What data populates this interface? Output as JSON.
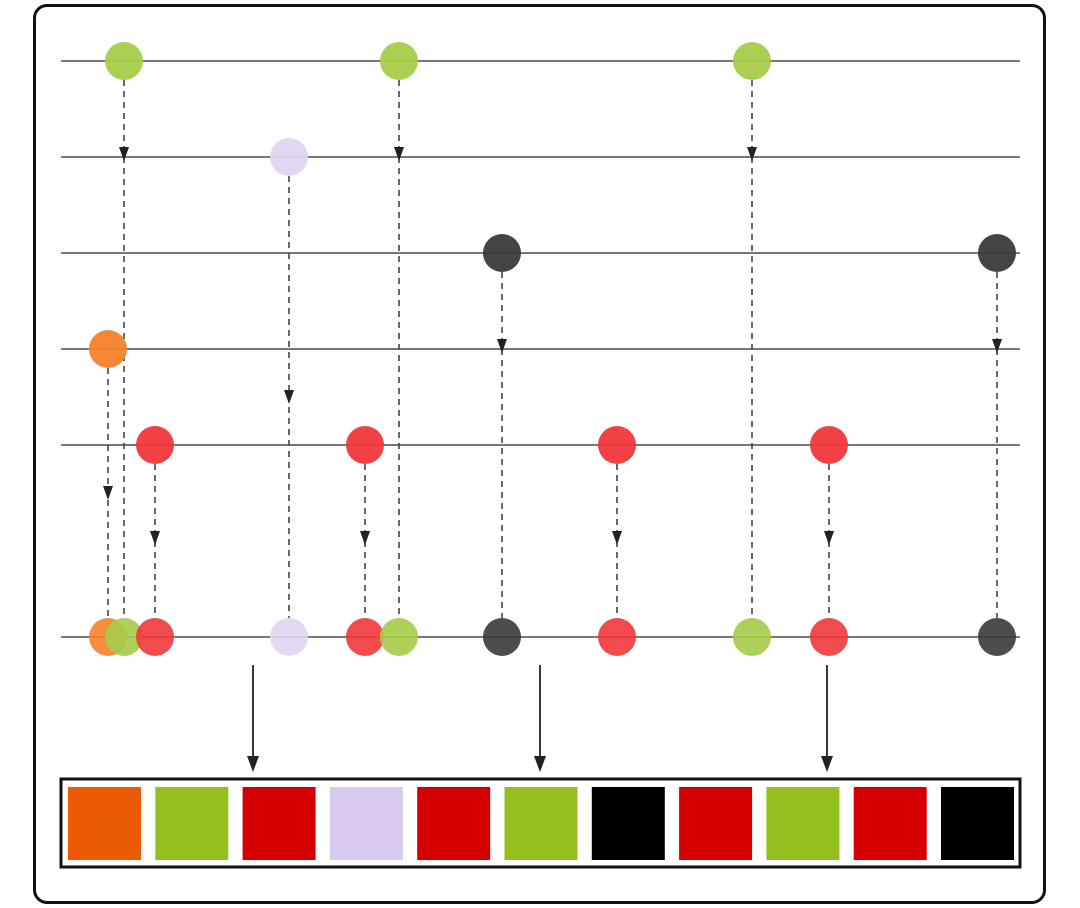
{
  "colors": {
    "orange": "#F5822A",
    "green": "#A6CC4A",
    "lavender": "#E0D5F2",
    "dark": "#3A3A3A",
    "red": "#F0373A",
    "output_orange": "#EB5A05",
    "output_green": "#93BF1F",
    "output_red": "#D60000",
    "output_lavender": "#D8C9EE",
    "output_dark": "#000000",
    "timeline": "#777777",
    "arrow": "#222222"
  },
  "streams": [
    {
      "role": "input",
      "events": [
        {
          "step": 1,
          "color": "green"
        },
        {
          "step": 5,
          "color": "green"
        },
        {
          "step": 9,
          "color": "green"
        }
      ]
    },
    {
      "role": "input",
      "events": [
        {
          "step": 3,
          "color": "lavender"
        }
      ]
    },
    {
      "role": "input",
      "events": [
        {
          "step": 6,
          "color": "dark"
        },
        {
          "step": 11,
          "color": "dark"
        }
      ]
    },
    {
      "role": "input",
      "events": [
        {
          "step": 0,
          "color": "orange"
        }
      ]
    },
    {
      "role": "input",
      "events": [
        {
          "step": 2,
          "color": "red"
        },
        {
          "step": 4,
          "color": "red"
        },
        {
          "step": 7,
          "color": "red"
        },
        {
          "step": 10,
          "color": "red"
        }
      ]
    },
    {
      "role": "merged",
      "events": [
        {
          "step": 0,
          "color": "orange"
        },
        {
          "step": 1,
          "color": "green"
        },
        {
          "step": 2,
          "color": "red"
        },
        {
          "step": 3,
          "color": "lavender"
        },
        {
          "step": 4,
          "color": "red"
        },
        {
          "step": 5,
          "color": "green"
        },
        {
          "step": 6,
          "color": "dark"
        },
        {
          "step": 7,
          "color": "red"
        },
        {
          "step": 9,
          "color": "green"
        },
        {
          "step": 10,
          "color": "red"
        },
        {
          "step": 11,
          "color": "dark"
        }
      ]
    }
  ],
  "output_buffer": [
    "output_orange",
    "output_green",
    "output_red",
    "output_lavender",
    "output_red",
    "output_green",
    "output_dark",
    "output_red",
    "output_green",
    "output_red",
    "output_dark"
  ],
  "flush_arrow_count": 3
}
